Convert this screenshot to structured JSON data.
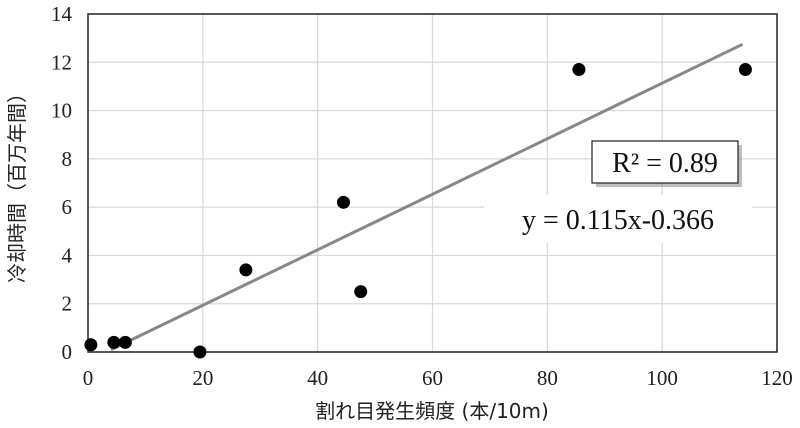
{
  "chart_data": {
    "type": "scatter",
    "title": "",
    "xlabel": "割れ目発生頻度 (本/10m)",
    "ylabel": "冷却時間（百万年間）",
    "xlim": [
      0,
      120
    ],
    "ylim": [
      0,
      14
    ],
    "x_ticks": [
      0,
      20,
      40,
      60,
      80,
      100,
      120
    ],
    "y_ticks": [
      0,
      2,
      4,
      6,
      8,
      10,
      12,
      14
    ],
    "grid": true,
    "series": [
      {
        "x": [
          0.5,
          4.5,
          6.5,
          19.5,
          27.5,
          44.5,
          47.5,
          85.5,
          114.5
        ],
        "y": [
          0.3,
          0.4,
          0.4,
          0.0,
          3.4,
          6.2,
          2.5,
          11.7,
          11.7
        ]
      }
    ],
    "trendline": {
      "slope": 0.115,
      "intercept": -0.366,
      "x_range": [
        4,
        114
      ],
      "equation": "y = 0.115x-0.366",
      "r_squared": "R² = 0.89",
      "color": "#888888"
    },
    "point_color": "#000000",
    "grid_color": "#d9d9d9"
  }
}
